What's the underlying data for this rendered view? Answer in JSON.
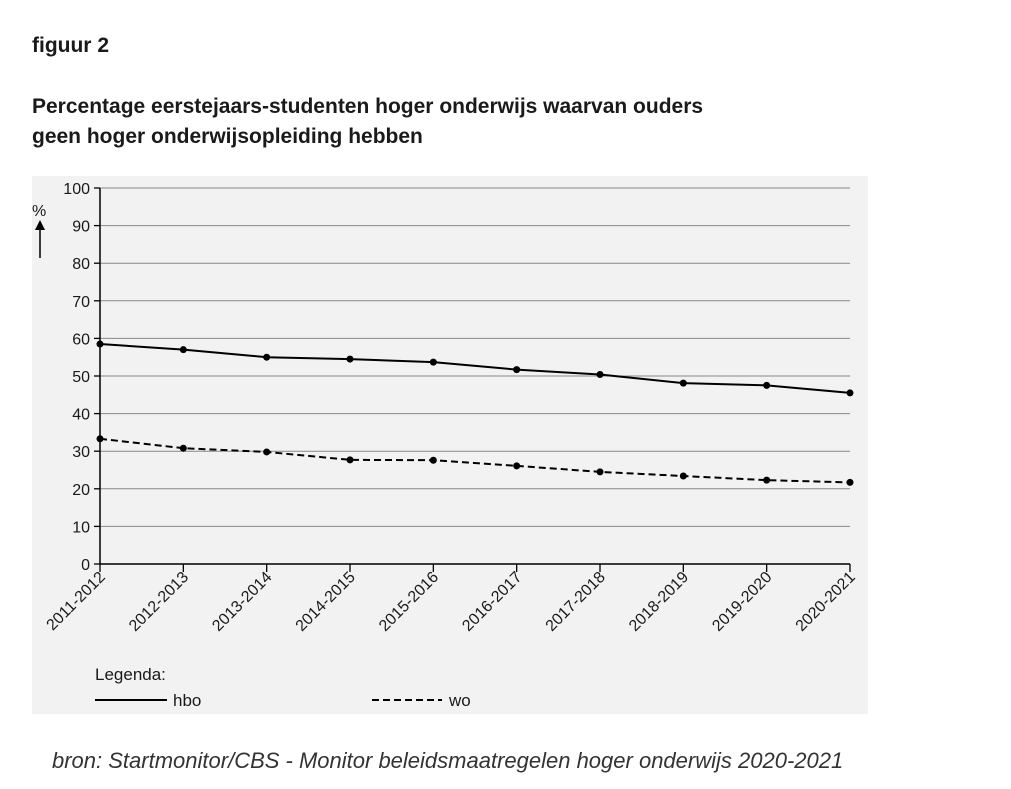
{
  "figure_label": "figuur 2",
  "title_line1": "Percentage eerstejaars-studenten hoger onderwijs waarvan ouders",
  "title_line2": "geen hoger onderwijsopleiding hebben",
  "source": "bron: Startmonitor/CBS - Monitor beleidsmaatregelen hoger onderwijs 2020-2021",
  "colors": {
    "panel": "#f2f2f2",
    "line": "#000000",
    "grid": "#888888"
  },
  "chart_data": {
    "type": "line",
    "title": "Percentage eerstejaars-studenten hoger onderwijs waarvan ouders geen hoger onderwijsopleiding hebben",
    "xlabel": "",
    "ylabel": "%",
    "ylim": [
      0,
      100
    ],
    "yticks": [
      0,
      10,
      20,
      30,
      40,
      50,
      60,
      70,
      80,
      90,
      100
    ],
    "grid": true,
    "categories": [
      "2011-2012",
      "2012-2013",
      "2013-2014",
      "2014-2015",
      "2015-2016",
      "2016-2017",
      "2017-2018",
      "2018-2019",
      "2019-2020",
      "2020-2021"
    ],
    "series": [
      {
        "name": "hbo",
        "style": "solid",
        "values": [
          58.5,
          57,
          55,
          54.5,
          53.7,
          51.7,
          50.4,
          48.1,
          47.5,
          45.5
        ]
      },
      {
        "name": "wo",
        "style": "dashed",
        "values": [
          33.3,
          30.8,
          29.8,
          27.7,
          27.6,
          26.1,
          24.5,
          23.4,
          22.3,
          21.7
        ]
      }
    ],
    "legend_title": "Legenda:",
    "legend_position": "bottom-left"
  }
}
